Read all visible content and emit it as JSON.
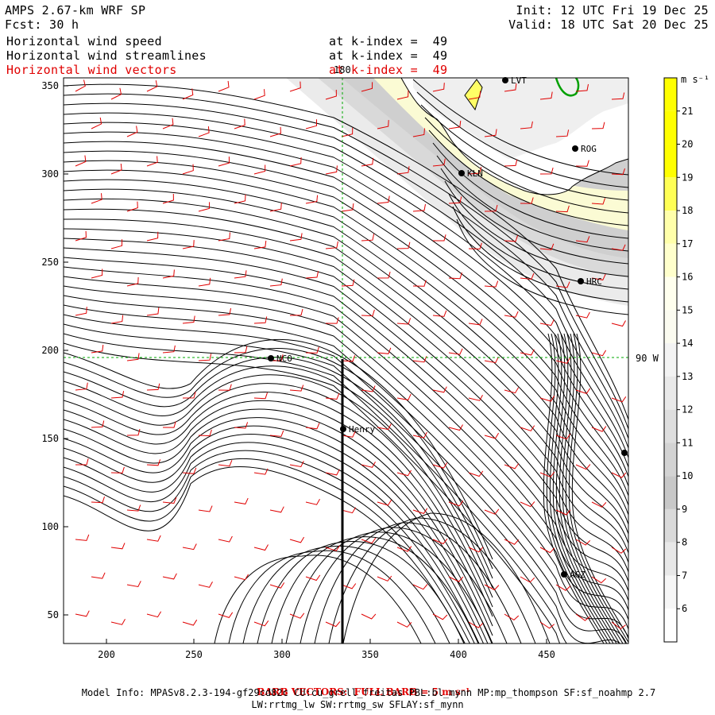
{
  "header": {
    "model_title": "AMPS 2.67-km WRF SP",
    "forecast_label": "Fcst:",
    "forecast_hours": "30 h",
    "init_time": "Init: 12 UTC Fri 19 Dec 25",
    "valid_time": "Valid: 18 UTC Sat 20 Dec 25",
    "fields": [
      {
        "name": "Horizontal wind speed",
        "level": "at k-index =  49",
        "color": "#000000"
      },
      {
        "name": "Horizontal wind streamlines",
        "level": "at k-index =  49",
        "color": "#000000"
      },
      {
        "name": "Horizontal wind vectors",
        "level": "at k-index =  49",
        "color": "#e00000"
      }
    ]
  },
  "map": {
    "x_ticks": [
      "200",
      "250",
      "300",
      "350",
      "400",
      "450"
    ],
    "y_ticks": [
      "50",
      "100",
      "150",
      "200",
      "250",
      "300",
      "350"
    ],
    "meridian_label": "180",
    "parallel_label": "90 W",
    "stations": [
      "LVT",
      "ROG",
      "KLN",
      "HRC",
      "NCO",
      "Henry",
      "AGZ",
      ""
    ]
  },
  "colorbar": {
    "unit": "m s⁻¹",
    "labels": [
      "21",
      "20",
      "19",
      "18",
      "17",
      "16",
      "15",
      "14",
      "13",
      "12",
      "11",
      "10",
      "9",
      "8",
      "7",
      "6"
    ],
    "colors": [
      "#ffff00",
      "#ffff00",
      "#ffff00",
      "#ffff55",
      "#ffffaa",
      "#ffffcc",
      "#ffffee",
      "#fbfbf0",
      "#f3f3f3",
      "#e9e9e9",
      "#dedede",
      "#d3d3d3",
      "#c8c8c8",
      "#dadada",
      "#e8e8e8",
      "#f6f6f6",
      "#ffffff"
    ]
  },
  "footer": {
    "barb_note": "BARB VECTORS:  FULL BARB = 5 m s⁻¹",
    "model_info": "Model Info: MPASv8.2.3-194-gf29cd82c CU:cu_grell_freitas PBL:bl_mynn MP:mp_thompson SF:sf_noahmp 2.7",
    "physics_info": "LW:rrtmg_lw SW:rrtmg_sw SFLAY:sf_mynn"
  }
}
